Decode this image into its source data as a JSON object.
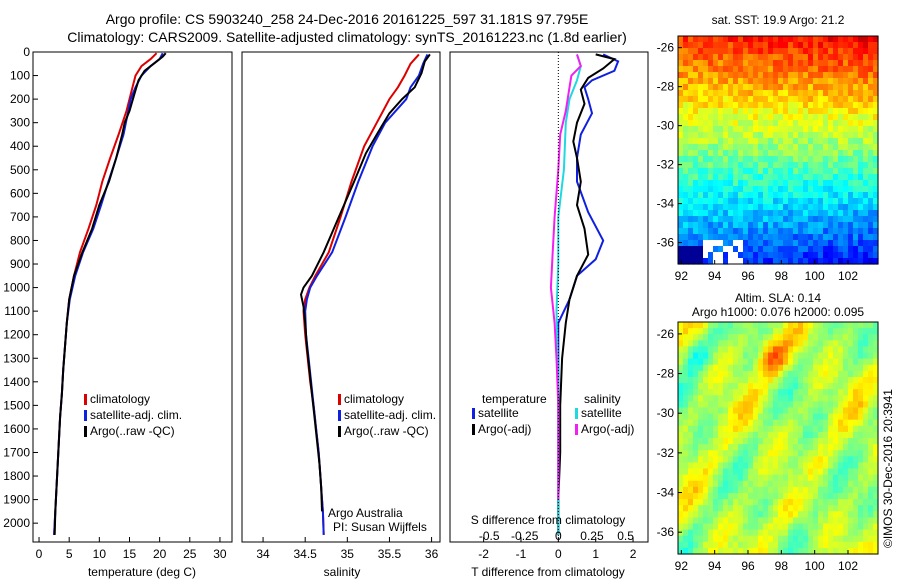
{
  "header": {
    "line1": "Argo profile: CS 5903240_258 24-Dec-2016 20161225_597 31.181S 97.795E",
    "line2": "Climatology: CARS2009. Satellite-adjusted climatology: synTS_20161223.nc (1.8d earlier)"
  },
  "credits": {
    "institution": "Argo Australia",
    "pi": "PI: Susan Wijffels",
    "imos": "©IMOS 30-Dec-2016 20:3941"
  },
  "colors": {
    "climatology": "#dd0000",
    "satellite_adj": "#1020e0",
    "argo": "#000000",
    "salinity_satellite": "#20d8e0",
    "salinity_argo": "#f020f0"
  },
  "chart_data": [
    {
      "type": "line",
      "id": "temperature",
      "xlabel": "temperature (deg C)",
      "ylabel": "",
      "xlim": [
        -1,
        32
      ],
      "ylim": [
        2080,
        0
      ],
      "x_ticks": [
        0,
        5,
        10,
        15,
        20,
        25,
        30
      ],
      "y_ticks": [
        0,
        100,
        200,
        300,
        400,
        500,
        600,
        700,
        800,
        900,
        1000,
        1100,
        1200,
        1300,
        1400,
        1500,
        1600,
        1700,
        1800,
        1900,
        2000
      ],
      "legend": [
        "climatology",
        "satellite-adj. clim.",
        "Argo(..raw -QC)"
      ],
      "legend_position": "lower-right",
      "series": [
        {
          "name": "climatology",
          "color": "#dd0000",
          "points": [
            [
              19.5,
              5
            ],
            [
              18.5,
              30
            ],
            [
              17.0,
              60
            ],
            [
              16.0,
              100
            ],
            [
              15.5,
              150
            ],
            [
              14.5,
              250
            ],
            [
              13.2,
              350
            ],
            [
              11.8,
              450
            ],
            [
              10.5,
              550
            ],
            [
              9.5,
              650
            ],
            [
              8.2,
              750
            ],
            [
              6.8,
              850
            ],
            [
              5.8,
              950
            ],
            [
              5.0,
              1050
            ],
            [
              4.6,
              1150
            ],
            [
              4.3,
              1250
            ],
            [
              4.0,
              1350
            ],
            [
              3.8,
              1450
            ],
            [
              3.5,
              1550
            ],
            [
              3.3,
              1650
            ],
            [
              3.1,
              1750
            ],
            [
              2.9,
              1850
            ],
            [
              2.7,
              1950
            ],
            [
              2.5,
              2050
            ]
          ]
        },
        {
          "name": "satellite-adj. clim.",
          "color": "#1020e0",
          "points": [
            [
              20.5,
              5
            ],
            [
              20.0,
              30
            ],
            [
              18.5,
              60
            ],
            [
              17.0,
              100
            ],
            [
              16.0,
              150
            ],
            [
              15.2,
              200
            ],
            [
              14.8,
              250
            ],
            [
              14.0,
              350
            ],
            [
              12.8,
              450
            ],
            [
              11.5,
              550
            ],
            [
              10.3,
              650
            ],
            [
              9.0,
              750
            ],
            [
              7.3,
              850
            ],
            [
              6.0,
              950
            ],
            [
              5.1,
              1050
            ],
            [
              4.6,
              1150
            ],
            [
              4.3,
              1250
            ],
            [
              4.0,
              1350
            ],
            [
              3.8,
              1450
            ],
            [
              3.5,
              1550
            ],
            [
              3.3,
              1650
            ],
            [
              3.1,
              1750
            ],
            [
              2.9,
              1850
            ],
            [
              2.7,
              1950
            ],
            [
              2.5,
              2050
            ]
          ]
        },
        {
          "name": "Argo(..raw -QC)",
          "color": "#000000",
          "points": [
            [
              21.0,
              5
            ],
            [
              20.5,
              20
            ],
            [
              19.0,
              50
            ],
            [
              17.5,
              80
            ],
            [
              16.5,
              120
            ],
            [
              15.8,
              180
            ],
            [
              15.0,
              250
            ],
            [
              14.2,
              300
            ],
            [
              13.8,
              350
            ],
            [
              12.8,
              450
            ],
            [
              11.6,
              550
            ],
            [
              10.0,
              650
            ],
            [
              8.8,
              750
            ],
            [
              7.2,
              850
            ],
            [
              5.8,
              950
            ],
            [
              5.0,
              1050
            ],
            [
              4.6,
              1150
            ],
            [
              4.3,
              1250
            ],
            [
              4.0,
              1350
            ],
            [
              3.8,
              1450
            ],
            [
              3.5,
              1550
            ],
            [
              3.3,
              1650
            ],
            [
              3.1,
              1750
            ],
            [
              2.9,
              1850
            ],
            [
              2.7,
              1950
            ],
            [
              2.6,
              2050
            ]
          ]
        }
      ]
    },
    {
      "type": "line",
      "id": "salinity",
      "xlabel": "salinity",
      "ylabel": "",
      "xlim": [
        33.75,
        36.1
      ],
      "ylim": [
        2080,
        0
      ],
      "x_ticks": [
        34,
        34.5,
        35,
        35.5,
        36
      ],
      "legend": [
        "climatology",
        "satellite-adj. clim.",
        "Argo(..raw -QC)"
      ],
      "legend_position": "lower-right",
      "series": [
        {
          "name": "climatology",
          "color": "#dd0000",
          "points": [
            [
              35.85,
              10
            ],
            [
              35.75,
              50
            ],
            [
              35.68,
              100
            ],
            [
              35.6,
              150
            ],
            [
              35.5,
              200
            ],
            [
              35.35,
              300
            ],
            [
              35.2,
              400
            ],
            [
              35.05,
              550
            ],
            [
              34.92,
              700
            ],
            [
              34.78,
              850
            ],
            [
              34.62,
              950
            ],
            [
              34.55,
              1000
            ],
            [
              34.5,
              1050
            ],
            [
              34.48,
              1100
            ],
            [
              34.5,
              1200
            ],
            [
              34.53,
              1300
            ],
            [
              34.56,
              1400
            ],
            [
              34.6,
              1500
            ],
            [
              34.63,
              1600
            ],
            [
              34.66,
              1700
            ],
            [
              34.68,
              1800
            ],
            [
              34.7,
              1900
            ],
            [
              34.71,
              1950
            ],
            [
              34.72,
              2050
            ]
          ]
        },
        {
          "name": "satellite-adj. clim.",
          "color": "#1020e0",
          "points": [
            [
              35.95,
              10
            ],
            [
              35.9,
              50
            ],
            [
              35.85,
              100
            ],
            [
              35.75,
              150
            ],
            [
              35.7,
              200
            ],
            [
              35.45,
              300
            ],
            [
              35.3,
              400
            ],
            [
              35.13,
              550
            ],
            [
              34.98,
              700
            ],
            [
              34.82,
              850
            ],
            [
              34.64,
              950
            ],
            [
              34.56,
              1000
            ],
            [
              34.52,
              1050
            ],
            [
              34.5,
              1100
            ],
            [
              34.51,
              1200
            ],
            [
              34.54,
              1300
            ],
            [
              34.57,
              1400
            ],
            [
              34.6,
              1500
            ],
            [
              34.63,
              1600
            ],
            [
              34.66,
              1700
            ],
            [
              34.68,
              1800
            ],
            [
              34.7,
              1900
            ],
            [
              34.71,
              1950
            ],
            [
              34.72,
              2050
            ]
          ]
        },
        {
          "name": "Argo(..raw -QC)",
          "color": "#000000",
          "points": [
            [
              35.98,
              10
            ],
            [
              35.92,
              40
            ],
            [
              35.88,
              90
            ],
            [
              35.8,
              150
            ],
            [
              35.65,
              200
            ],
            [
              35.5,
              260
            ],
            [
              35.35,
              350
            ],
            [
              35.22,
              430
            ],
            [
              35.08,
              550
            ],
            [
              34.9,
              700
            ],
            [
              34.72,
              850
            ],
            [
              34.58,
              950
            ],
            [
              34.48,
              1000
            ],
            [
              34.45,
              1030
            ],
            [
              34.48,
              1080
            ],
            [
              34.5,
              1150
            ],
            [
              34.52,
              1250
            ],
            [
              34.55,
              1350
            ],
            [
              34.58,
              1450
            ],
            [
              34.61,
              1550
            ],
            [
              34.64,
              1650
            ],
            [
              34.67,
              1750
            ],
            [
              34.69,
              1850
            ],
            [
              34.7,
              1950
            ]
          ]
        }
      ]
    },
    {
      "type": "line",
      "id": "difference",
      "xlabel": "T difference from climatology",
      "x2label": "S difference from climatology",
      "ylabel": "",
      "xlim": [
        -2.9,
        2.4
      ],
      "ylim": [
        2080,
        0
      ],
      "x_ticks": [
        -2,
        -1,
        0,
        1,
        2
      ],
      "x2_ticks": [
        "-0.5",
        "-0.25",
        "0",
        "0.25",
        "0.5"
      ],
      "legend_headers": [
        "temperature",
        "salinity"
      ],
      "legend": [
        "satellite",
        "Argo(-adj)",
        "satellite",
        "Argo(-adj)"
      ],
      "legend_position": "lower-right",
      "series": [
        {
          "name": "temperature satellite",
          "color": "#1020e0",
          "points": [
            [
              1.2,
              10
            ],
            [
              1.6,
              40
            ],
            [
              1.5,
              80
            ],
            [
              0.9,
              120
            ],
            [
              0.7,
              150
            ],
            [
              0.8,
              200
            ],
            [
              0.9,
              260
            ],
            [
              0.6,
              350
            ],
            [
              0.5,
              450
            ],
            [
              0.5,
              550
            ],
            [
              0.8,
              680
            ],
            [
              1.2,
              800
            ],
            [
              1.0,
              880
            ],
            [
              0.5,
              950
            ],
            [
              0.3,
              1050
            ],
            [
              0.0,
              1150
            ],
            [
              0.0,
              1300
            ],
            [
              0.0,
              1500
            ],
            [
              0.0,
              1700
            ],
            [
              0.0,
              1900
            ],
            [
              0.0,
              2050
            ]
          ]
        },
        {
          "name": "temperature Argo(-adj)",
          "color": "#000000",
          "points": [
            [
              1.0,
              10
            ],
            [
              1.5,
              30
            ],
            [
              1.2,
              70
            ],
            [
              0.8,
              110
            ],
            [
              0.6,
              160
            ],
            [
              0.7,
              220
            ],
            [
              0.5,
              300
            ],
            [
              0.4,
              380
            ],
            [
              0.5,
              450
            ],
            [
              0.6,
              550
            ],
            [
              0.5,
              650
            ],
            [
              0.7,
              750
            ],
            [
              0.8,
              860
            ],
            [
              0.5,
              950
            ],
            [
              0.3,
              1050
            ],
            [
              0.2,
              1150
            ],
            [
              0.1,
              1300
            ],
            [
              0.05,
              1500
            ],
            [
              0.05,
              1700
            ],
            [
              0.0,
              1900
            ],
            [
              0.0,
              2050
            ]
          ]
        },
        {
          "name": "salinity satellite",
          "color": "#20d8e0",
          "points": [
            [
              0.5,
              10
            ],
            [
              0.6,
              60
            ],
            [
              0.5,
              120
            ],
            [
              0.3,
              200
            ],
            [
              0.2,
              300
            ],
            [
              0.15,
              500
            ],
            [
              0.0,
              700
            ],
            [
              0.0,
              900
            ],
            [
              -0.05,
              1100
            ],
            [
              -0.02,
              1300
            ],
            [
              0.0,
              1500
            ],
            [
              0.0,
              1700
            ],
            [
              0.0,
              1900
            ],
            [
              0.0,
              2050
            ]
          ]
        },
        {
          "name": "salinity Argo(-adj)",
          "color": "#f020f0",
          "points": [
            [
              0.5,
              10
            ],
            [
              0.6,
              60
            ],
            [
              0.35,
              100
            ],
            [
              0.3,
              150
            ],
            [
              0.2,
              250
            ],
            [
              0.05,
              350
            ],
            [
              0.0,
              500
            ],
            [
              -0.1,
              700
            ],
            [
              -0.15,
              850
            ],
            [
              -0.2,
              1000
            ],
            [
              -0.1,
              1150
            ],
            [
              -0.05,
              1300
            ],
            [
              0.0,
              1500
            ],
            [
              0.0,
              1700
            ],
            [
              0.0,
              1900
            ]
          ]
        }
      ]
    },
    {
      "type": "heatmap",
      "id": "sst_map",
      "title": "sat. SST: 19.9  Argo: 21.2",
      "x_ticks": [
        92,
        94,
        96,
        98,
        100,
        102
      ],
      "y_ticks": [
        -26,
        -28,
        -30,
        -32,
        -34,
        -36
      ],
      "xlim": [
        91.8,
        103.8
      ],
      "ylim": [
        -37.1,
        -25.4
      ],
      "colormap": "jet"
    },
    {
      "type": "heatmap",
      "id": "sla_map",
      "title": "Altim. SLA: 0.14",
      "subtitle": "Argo h1000: 0.076  h2000: 0.095",
      "x_ticks": [
        92,
        94,
        96,
        98,
        100,
        102
      ],
      "y_ticks": [
        -26,
        -28,
        -30,
        -32,
        -34,
        -36
      ],
      "xlim": [
        91.8,
        103.8
      ],
      "ylim": [
        -37.1,
        -25.4
      ],
      "colormap": "jet"
    }
  ]
}
